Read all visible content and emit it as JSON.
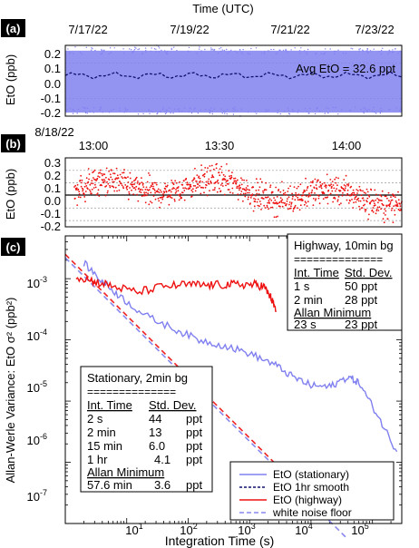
{
  "colors": {
    "stationary": "#8080f0",
    "smooth": "#101070",
    "highway": "#ee1111",
    "white_noise_stationary": "#8888ee",
    "white_noise_highway": "#ee2222",
    "panel_label_bg": "#000000"
  },
  "chart_data": [
    {
      "panel": "(a)",
      "type": "scatter",
      "top_axis_label": "Time  (UTC)",
      "x_tick_labels": [
        "7/17/22",
        "7/19/22",
        "7/21/22",
        "7/23/22"
      ],
      "ylabel": "EtO (ppb)",
      "ylim": [
        -0.2,
        0.2
      ],
      "y_tick_labels": [
        "0.2",
        "0.1",
        "0.0",
        "-0.1",
        "-0.2"
      ],
      "annotation": "Avg EtO = 32.6 ppt",
      "series": [
        {
          "name": "EtO (stationary)",
          "style": "points",
          "band": [
            -0.18,
            0.17
          ]
        },
        {
          "name": "EtO 1hr smooth",
          "style": "dashed line",
          "approx_value": 0.03
        }
      ],
      "grid": "dashed horizontal"
    },
    {
      "panel": "(b)",
      "type": "scatter",
      "date_label": "8/18/22",
      "x_tick_labels": [
        "13:00",
        "13:30",
        "14:00"
      ],
      "ylabel": "EtO (ppb)",
      "ylim": [
        -0.25,
        0.3
      ],
      "y_tick_labels": [
        "0.3",
        "0.2",
        "0.1",
        "0.0",
        "-0.1",
        "-0.2"
      ],
      "series": [
        {
          "name": "EtO (highway)",
          "style": "points",
          "band": [
            -0.22,
            0.28
          ]
        }
      ],
      "grid": "dashed horizontal"
    },
    {
      "panel": "(c)",
      "type": "line",
      "xlabel": "Integration Time (s)",
      "ylabel": "Allan-Werle Variance: EtO σ² (ppb²)",
      "xscale": "log",
      "yscale": "log",
      "xlim": [
        1,
        300000
      ],
      "ylim": [
        1e-07,
        0.005
      ],
      "x_tick_labels": [
        "10",
        "10",
        "10",
        "10",
        "10"
      ],
      "x_tick_exponents": [
        "1",
        "2",
        "3",
        "4",
        "5"
      ],
      "y_tick_labels": [
        "10",
        "10",
        "10",
        "10",
        "10"
      ],
      "y_tick_exponents": [
        "-3",
        "-4",
        "-5",
        "-6",
        "-7"
      ],
      "series": [
        {
          "name": "EtO (stationary)",
          "x": [
            2,
            4,
            8,
            20,
            60,
            150,
            400,
            1000,
            2500,
            5000,
            10000,
            20000,
            40000,
            60000,
            120000,
            250000
          ],
          "y": [
            0.0018,
            0.0009,
            0.0005,
            0.00025,
            0.00015,
            0.0001,
            8e-05,
            6e-05,
            4e-05,
            2.5e-05,
            1.8e-05,
            1.7e-05,
            2.5e-05,
            2e-05,
            6e-06,
            1.5e-06
          ]
        },
        {
          "name": "EtO (highway)",
          "x": [
            1.5,
            3,
            6,
            15,
            40,
            100,
            200,
            400,
            700,
            1200,
            1700,
            2200,
            2700
          ],
          "y": [
            0.0011,
            0.0009,
            0.00075,
            0.0006,
            0.00075,
            0.0008,
            0.00078,
            0.0008,
            0.0008,
            0.0008,
            0.00075,
            0.0005,
            0.0003
          ]
        },
        {
          "name": "white noise floor",
          "sub": "stationary",
          "x": [
            1,
            40000
          ],
          "y": [
            0.0022,
            5.5e-08
          ]
        },
        {
          "name": "white noise floor",
          "sub": "highway",
          "x": [
            1,
            3000
          ],
          "y": [
            0.0025,
            8.3e-07
          ]
        }
      ],
      "legend": {
        "placement": "bottom-right",
        "entries": [
          "EtO (stationary)",
          "EtO 1hr smooth",
          "EtO (highway)",
          "white noise floor"
        ]
      },
      "tables": [
        {
          "title": "Highway, 10min bg",
          "rule": "==============",
          "headers": [
            "Int. Time",
            "Std. Dev."
          ],
          "rows": [
            [
              "1 s",
              "50 ppt"
            ],
            [
              "2 min",
              "28 ppt"
            ]
          ],
          "min_header": "Allan Minimum",
          "min_row": [
            "23 s",
            "23 ppt"
          ]
        },
        {
          "title": "Stationary, 2min bg",
          "rule": "==============",
          "headers": [
            "Int. Time",
            "Std. Dev."
          ],
          "rows": [
            [
              "2 s",
              "44",
              "ppt"
            ],
            [
              "2 min",
              "13",
              "ppt"
            ],
            [
              "15 min",
              "6.0",
              "ppt"
            ],
            [
              "1 hr",
              "4.1",
              "ppt"
            ]
          ],
          "min_header": "Allan Minimum",
          "min_row": [
            "57.6 min",
            "3.6",
            "ppt"
          ]
        }
      ]
    }
  ]
}
